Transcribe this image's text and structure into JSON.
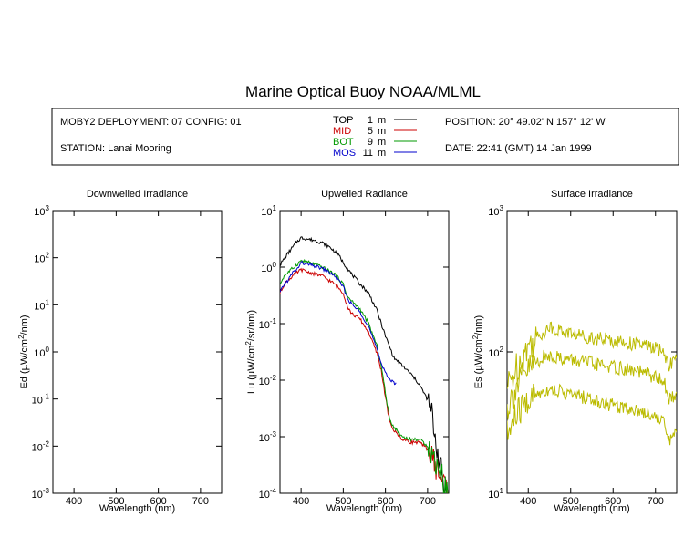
{
  "title": "Marine Optical Buoy NOAA/MLML",
  "info": {
    "deployment": "MOBY2 DEPLOYMENT: 07 CONFIG: 01",
    "station": "STATION: Lanai Mooring",
    "position": "POSITION: 20° 49.02' N   157° 12' W",
    "date": "DATE: 22:41 (GMT) 14 Jan 1999"
  },
  "legend": [
    {
      "name": "TOP",
      "depth": "1",
      "unit": "m",
      "color": "#000000"
    },
    {
      "name": "MID",
      "depth": "5",
      "unit": "m",
      "color": "#cc0000"
    },
    {
      "name": "BOT",
      "depth": "9",
      "unit": "m",
      "color": "#009900"
    },
    {
      "name": "MOS",
      "depth": "11",
      "unit": "m",
      "color": "#0000cc"
    }
  ],
  "chart_data": [
    {
      "type": "line",
      "title": "Downwelled Irradiance",
      "xlabel": "Wavelength (nm)",
      "ylabel": "Ed  (µW/cm²/nm)",
      "ylabel_parts": {
        "main": "Ed  (µW/cm",
        "sup": "2",
        "tail": "/nm)"
      },
      "xlim": [
        350,
        750
      ],
      "ylim": [
        0.001,
        1000
      ],
      "yscale": "log",
      "x_ticks": [
        "400",
        "500",
        "600",
        "700"
      ],
      "y_ticks": [
        {
          "base": "10",
          "exp": "-3"
        },
        {
          "base": "10",
          "exp": "-2"
        },
        {
          "base": "10",
          "exp": "-1"
        },
        {
          "base": "10",
          "exp": "0"
        },
        {
          "base": "10",
          "exp": "1"
        },
        {
          "base": "10",
          "exp": "2"
        },
        {
          "base": "10",
          "exp": "3"
        }
      ],
      "series": []
    },
    {
      "type": "line",
      "title": "Upwelled Radiance",
      "xlabel": "Wavelength (nm)",
      "ylabel": "Lu  (µW/cm²/sr/nm)",
      "ylabel_parts": {
        "main": "Lu  (µW/cm",
        "sup": "2",
        "tail": "/sr/nm)"
      },
      "xlim": [
        350,
        750
      ],
      "ylim": [
        0.0001,
        10
      ],
      "yscale": "log",
      "x_ticks": [
        "400",
        "500",
        "600",
        "700"
      ],
      "y_ticks": [
        {
          "base": "10",
          "exp": "-4"
        },
        {
          "base": "10",
          "exp": "-3"
        },
        {
          "base": "10",
          "exp": "-2"
        },
        {
          "base": "10",
          "exp": "-1"
        },
        {
          "base": "10",
          "exp": "0"
        },
        {
          "base": "10",
          "exp": "1"
        }
      ],
      "series": [
        {
          "name": "TOP",
          "color": "#000000",
          "x": [
            350,
            370,
            390,
            400,
            410,
            430,
            450,
            470,
            490,
            500,
            520,
            540,
            560,
            580,
            600,
            620,
            640,
            660,
            680,
            700,
            710,
            720,
            730,
            740,
            750
          ],
          "y": [
            1.1,
            1.8,
            2.8,
            3.3,
            3.2,
            3.0,
            2.7,
            2.2,
            1.6,
            1.2,
            0.75,
            0.5,
            0.35,
            0.17,
            0.06,
            0.025,
            0.018,
            0.013,
            0.0085,
            0.0045,
            0.0025,
            0.0008,
            0.0003,
            0.00012,
            0.0001
          ]
        },
        {
          "name": "MID",
          "color": "#cc0000",
          "x": [
            350,
            360,
            380,
            400,
            420,
            450,
            480,
            500,
            510,
            520,
            540,
            560,
            580,
            590,
            600,
            610,
            620,
            640,
            660,
            680,
            700,
            720,
            730,
            740,
            750
          ],
          "y": [
            0.35,
            0.5,
            0.7,
            0.9,
            0.8,
            0.7,
            0.5,
            0.35,
            0.2,
            0.15,
            0.12,
            0.07,
            0.03,
            0.015,
            0.005,
            0.0018,
            0.0013,
            0.0009,
            0.0008,
            0.0008,
            0.0006,
            0.0003,
            0.0002,
            0.00015,
            0.0001
          ]
        },
        {
          "name": "BOT",
          "color": "#009900",
          "x": [
            350,
            360,
            380,
            400,
            420,
            450,
            480,
            500,
            510,
            520,
            540,
            560,
            580,
            590,
            600,
            610,
            620,
            640,
            660,
            680,
            700,
            720,
            730,
            740,
            750
          ],
          "y": [
            0.5,
            0.7,
            0.95,
            1.3,
            1.2,
            1.0,
            0.75,
            0.5,
            0.3,
            0.25,
            0.18,
            0.1,
            0.04,
            0.018,
            0.006,
            0.002,
            0.0015,
            0.001,
            0.0009,
            0.0009,
            0.0007,
            0.00035,
            0.00025,
            0.00015,
            0.0001
          ]
        },
        {
          "name": "MOS",
          "color": "#0000cc",
          "x": [
            350,
            360,
            370,
            380,
            390,
            400,
            420,
            450,
            480,
            500,
            510,
            520,
            540,
            560,
            580,
            590,
            600,
            610,
            620,
            625
          ],
          "y": [
            0.35,
            0.5,
            0.6,
            0.8,
            0.9,
            1.2,
            1.1,
            0.95,
            0.7,
            0.45,
            0.28,
            0.22,
            0.16,
            0.09,
            0.035,
            0.02,
            0.014,
            0.01,
            0.009,
            0.009
          ]
        }
      ]
    },
    {
      "type": "line",
      "title": "Surface Irradiance",
      "xlabel": "Wavelength (nm)",
      "ylabel": "Es  (µW/cm²/nm)",
      "ylabel_parts": {
        "main": "Es  (µW/cm",
        "sup": "2",
        "tail": "/nm)"
      },
      "xlim": [
        350,
        750
      ],
      "ylim": [
        10,
        1000
      ],
      "yscale": "log",
      "x_ticks": [
        "400",
        "500",
        "600",
        "700"
      ],
      "y_ticks": [
        {
          "base": "10",
          "exp": "1"
        },
        {
          "base": "10",
          "exp": "2"
        },
        {
          "base": "10",
          "exp": "3"
        }
      ],
      "series": [
        {
          "name": "Es upper",
          "color": "#bbbb00",
          "x": [
            350,
            370,
            400,
            420,
            450,
            480,
            500,
            530,
            560,
            600,
            640,
            680,
            700,
            720,
            730,
            740,
            750
          ],
          "y": [
            55,
            75,
            110,
            125,
            150,
            140,
            135,
            130,
            125,
            120,
            115,
            110,
            105,
            100,
            80,
            85,
            90
          ]
        },
        {
          "name": "Es middle",
          "color": "#bbbb00",
          "x": [
            350,
            370,
            400,
            420,
            450,
            480,
            500,
            530,
            560,
            600,
            640,
            680,
            700,
            720,
            730,
            740,
            750
          ],
          "y": [
            40,
            55,
            75,
            85,
            95,
            90,
            88,
            85,
            82,
            78,
            74,
            70,
            66,
            62,
            45,
            48,
            52
          ]
        },
        {
          "name": "Es lower",
          "color": "#bbbb00",
          "x": [
            350,
            370,
            400,
            420,
            450,
            480,
            500,
            530,
            560,
            600,
            640,
            680,
            700,
            720,
            730,
            740,
            750
          ],
          "y": [
            25,
            35,
            45,
            50,
            55,
            52,
            50,
            48,
            45,
            42,
            40,
            37,
            35,
            32,
            24,
            25,
            27
          ]
        }
      ]
    }
  ]
}
